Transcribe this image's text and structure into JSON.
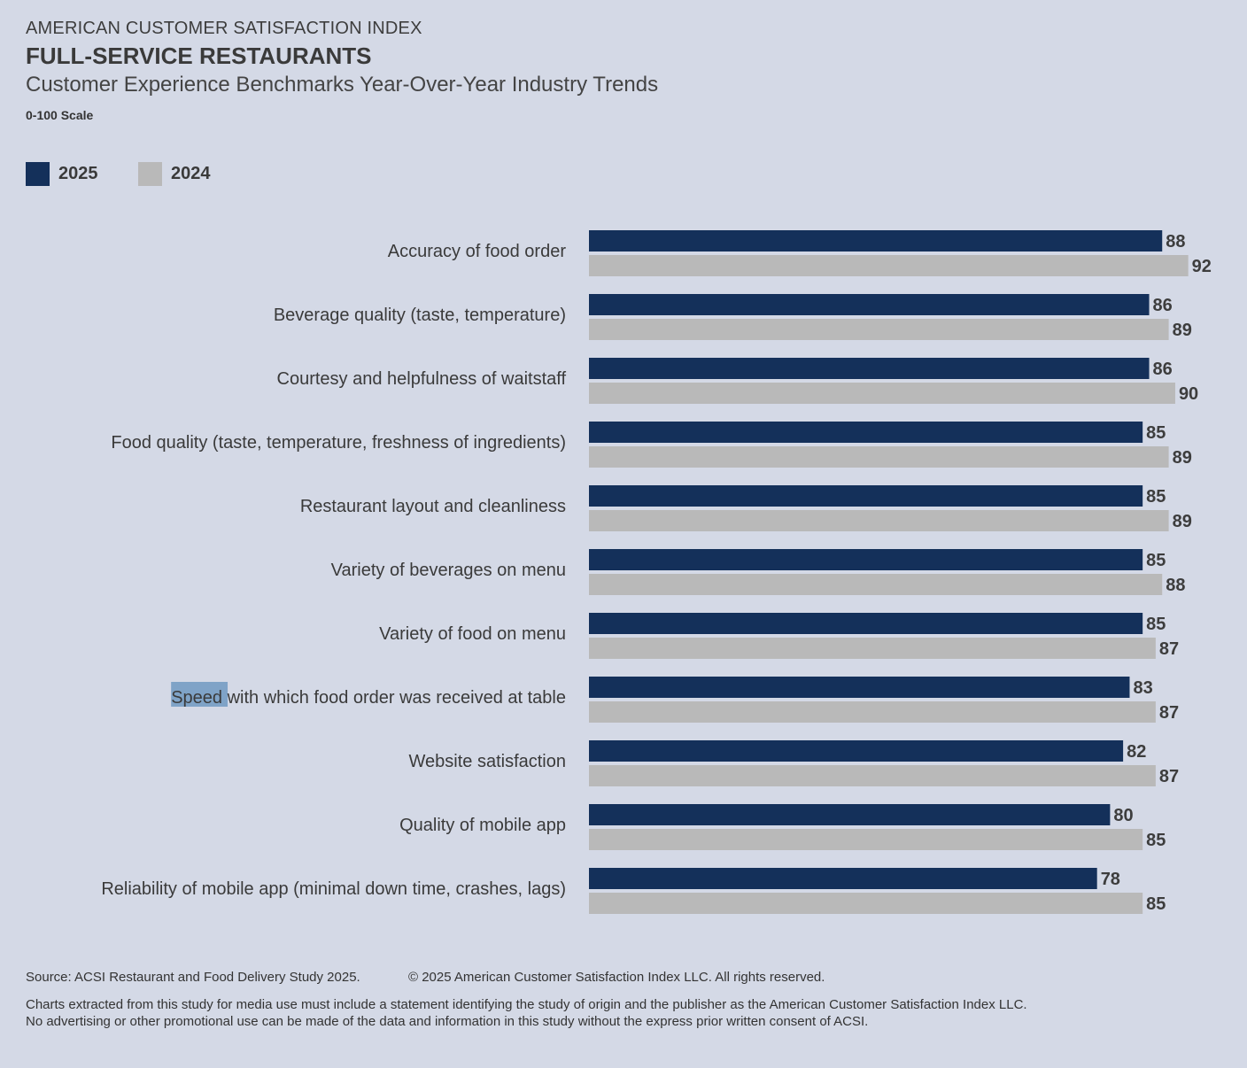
{
  "header": {
    "org": "AMERICAN CUSTOMER SATISFACTION INDEX",
    "title": "FULL-SERVICE RESTAURANTS",
    "subtitle": "Customer Experience Benchmarks Year-Over-Year Industry Trends",
    "scale_note": "0-100 Scale"
  },
  "legend": [
    {
      "label": "2025",
      "color": "#14305a"
    },
    {
      "label": "2024",
      "color": "#b9b9b9"
    }
  ],
  "chart_data": {
    "type": "bar",
    "orientation": "horizontal",
    "categories": [
      "Accuracy of food order",
      "Beverage quality (taste, temperature)",
      "Courtesy and helpfulness of waitstaff",
      "Food quality (taste, temperature, freshness of ingredients)",
      "Restaurant layout and cleanliness",
      "Variety of beverages on menu",
      "Variety of food on menu",
      "Speed with which food order was received at table",
      "Website satisfaction",
      "Quality of mobile app",
      "Reliability of mobile app (minimal down time, crashes, lags)"
    ],
    "series": [
      {
        "name": "2025",
        "color": "#14305a",
        "values": [
          88,
          86,
          86,
          85,
          85,
          85,
          85,
          83,
          82,
          80,
          78
        ]
      },
      {
        "name": "2024",
        "color": "#b9b9b9",
        "values": [
          92,
          89,
          90,
          89,
          89,
          88,
          87,
          87,
          87,
          85,
          85
        ]
      }
    ],
    "xlim": [
      0,
      100
    ],
    "axis_scale_note": "0-100 Scale",
    "grid": false,
    "legend_position": "top-left",
    "highlighted_text": "Speed"
  },
  "footer": {
    "source": "Source: ACSI Restaurant and Food Delivery Study 2025.",
    "copyright": "© 2025 American Customer Satisfaction Index LLC. All rights reserved.",
    "note_line1": "Charts extracted from this study for media use must include a statement identifying the study of origin and the publisher as the American Customer Satisfaction Index LLC.",
    "note_line2": "No advertising or other promotional use can be made of the data and information in this study without the express prior written consent of ACSI."
  }
}
